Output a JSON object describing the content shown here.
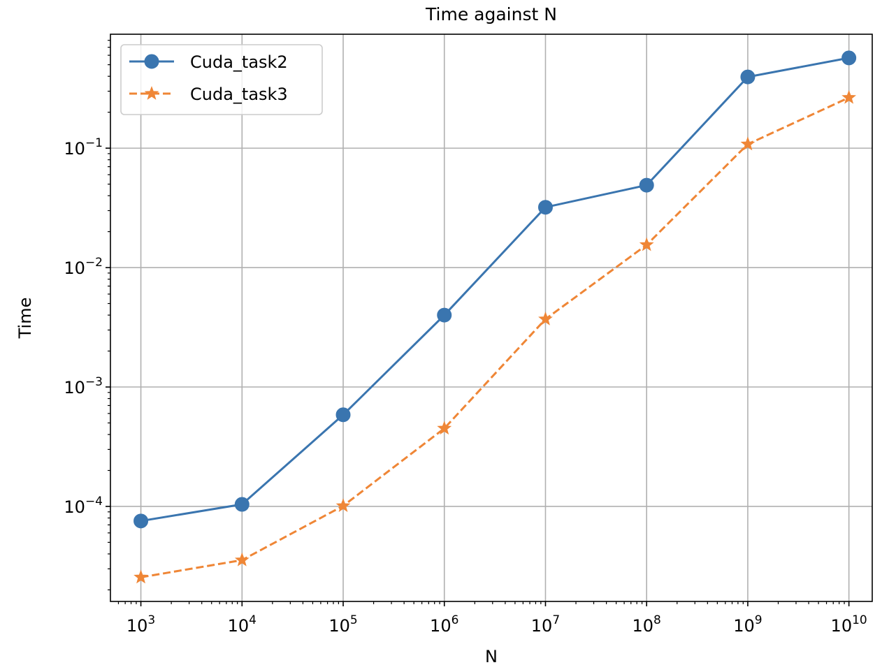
{
  "chart_data": {
    "type": "line",
    "title": "Time against N",
    "xlabel": "N",
    "ylabel": "Time",
    "xscale": "log",
    "yscale": "log",
    "x": [
      1000,
      10000,
      100000,
      1000000,
      10000000,
      100000000,
      1000000000,
      10000000000
    ],
    "x_tick_labels": [
      {
        "base": "10",
        "exp": "3"
      },
      {
        "base": "10",
        "exp": "4"
      },
      {
        "base": "10",
        "exp": "5"
      },
      {
        "base": "10",
        "exp": "6"
      },
      {
        "base": "10",
        "exp": "7"
      },
      {
        "base": "10",
        "exp": "8"
      },
      {
        "base": "10",
        "exp": "9"
      },
      {
        "base": "10",
        "exp": "10"
      }
    ],
    "y_tick_labels": [
      {
        "base": "10",
        "exp": "−4",
        "value": 0.0001
      },
      {
        "base": "10",
        "exp": "−3",
        "value": 0.001
      },
      {
        "base": "10",
        "exp": "−2",
        "value": 0.01
      },
      {
        "base": "10",
        "exp": "−1",
        "value": 0.1
      }
    ],
    "xlim": [
      500,
      17000000000
    ],
    "ylim": [
      1.6e-05,
      0.9
    ],
    "grid": true,
    "legend_position": "top-left",
    "series": [
      {
        "name": "Cuda_task2",
        "color": "#3a75af",
        "marker": "circle",
        "linestyle": "solid",
        "values": [
          7.55e-05,
          0.000104,
          0.000585,
          0.004,
          0.032,
          0.049,
          0.395,
          0.57
        ]
      },
      {
        "name": "Cuda_task3",
        "color": "#ef8636",
        "marker": "star",
        "linestyle": "dashed",
        "values": [
          2.55e-05,
          3.55e-05,
          0.000101,
          0.00045,
          0.0037,
          0.0155,
          0.108,
          0.265
        ]
      }
    ]
  }
}
